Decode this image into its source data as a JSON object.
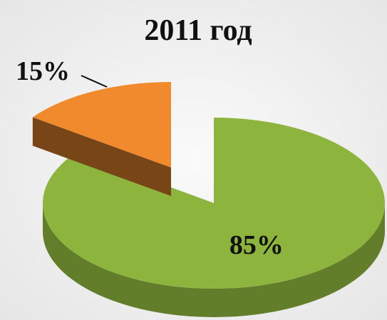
{
  "chart_data": {
    "type": "pie",
    "title": "2011 год",
    "values": [
      85,
      15
    ],
    "value_labels": [
      "85%",
      "15%"
    ],
    "colors": [
      "#8db43c",
      "#f08a2c"
    ],
    "three_d": true,
    "exploded": [
      false,
      true
    ]
  }
}
